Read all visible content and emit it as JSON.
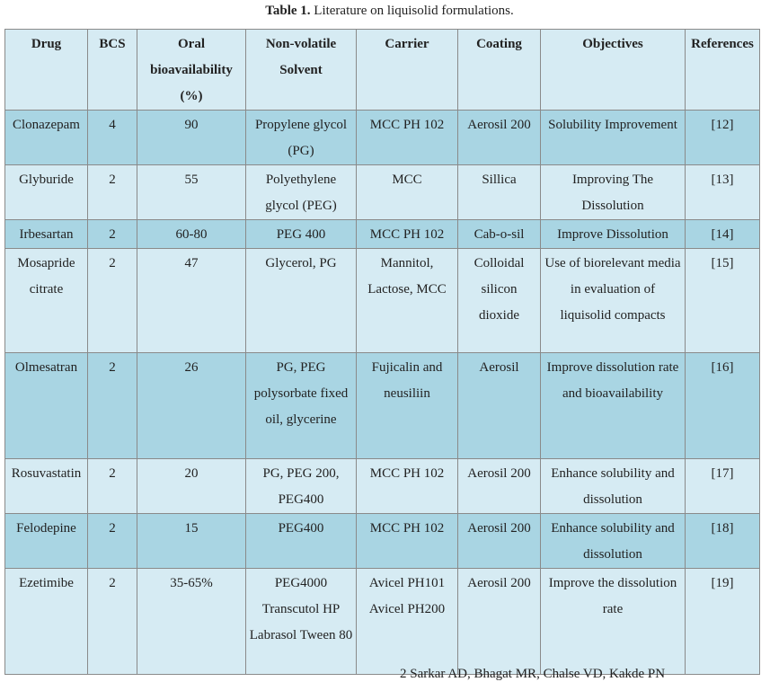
{
  "title": {
    "label": "Table 1.",
    "text": "Literature on liquisolid formulations."
  },
  "table": {
    "header": [
      "Drug",
      "BCS",
      "Oral bioavailability (%)",
      "Non-volatile Solvent",
      "Carrier",
      "Coating",
      "Objectives",
      "References"
    ],
    "rows": [
      [
        "Clonazepam",
        "4",
        "90",
        "Propylene glycol (PG)",
        "MCC PH 102",
        "Aerosil 200",
        "Solubility Improvement",
        "[12]"
      ],
      [
        "Glyburide",
        "2",
        "55",
        "Polyethylene glycol (PEG)",
        "MCC",
        "Sillica",
        "Improving The Dissolution",
        "[13]"
      ],
      [
        "Irbesartan",
        "2",
        "60-80",
        "PEG 400",
        "MCC PH 102",
        "Cab-o-sil",
        "Improve Dissolution",
        "[14]"
      ],
      [
        "Mosapride citrate",
        "2",
        "47",
        "Glycerol, PG",
        "Mannitol, Lactose, MCC",
        "Colloidal silicon dioxide",
        "Use of biorelevant media in evaluation of liquisolid compacts",
        "[15]"
      ],
      [
        "Olmesatran",
        "2",
        "26",
        "PG, PEG polysorbate fixed oil, glycerine",
        "Fujicalin and neusiliin",
        "Aerosil",
        "Improve dissolution rate and bioavailability",
        "[16]"
      ],
      [
        "Rosuvastatin",
        "2",
        "20",
        "PG, PEG 200, PEG400",
        "MCC PH 102",
        "Aerosil 200",
        "Enhance solubility and dissolution",
        "[17]"
      ],
      [
        "Felodepine",
        "2",
        "15",
        "PEG400",
        "MCC PH 102",
        "Aerosil 200",
        "Enhance solubility and dissolution",
        "[18]"
      ],
      [
        "Ezetimibe",
        "2",
        "35-65%",
        "PEG4000 Transcutol HP Labrasol Tween 80",
        "Avicel PH101 Avicel PH200",
        "Aerosil 200",
        "Improve the dissolution rate",
        "[19]"
      ]
    ]
  },
  "footer": "2 Sarkar AD, Bhagat MR, Chalse VD, Kakde PN"
}
